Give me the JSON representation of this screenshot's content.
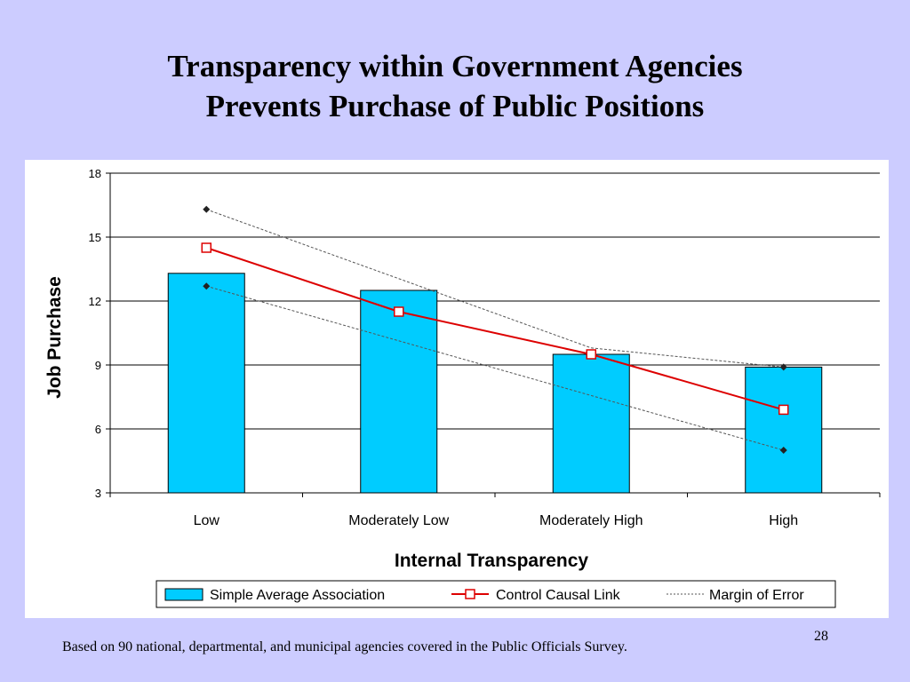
{
  "slide": {
    "title_line1": "Transparency within Government Agencies",
    "title_line2": "Prevents Purchase of Public Positions",
    "footnote": "Based on 90 national, departmental, and municipal agencies covered in the  Public Officials Survey.",
    "page_number": "28"
  },
  "colors": {
    "background": "#ccccff",
    "bar_fill": "#00ccff",
    "causal_line": "#dd0000",
    "error_line": "#555555"
  },
  "chart_data": {
    "type": "bar",
    "xlabel": "Internal Transparency",
    "ylabel": "Job Purchase",
    "categories": [
      "Low",
      "Moderately Low",
      "Moderately High",
      "High"
    ],
    "ylim": [
      3,
      18
    ],
    "yticks": [
      3,
      6,
      9,
      12,
      15,
      18
    ],
    "grid": true,
    "legend_position": "bottom",
    "series": [
      {
        "name": "Simple Average Association",
        "kind": "bar",
        "values": [
          13.3,
          12.5,
          9.5,
          8.9
        ]
      },
      {
        "name": "Control Causal Link",
        "kind": "line",
        "marker": "square",
        "values": [
          14.5,
          11.5,
          9.5,
          6.9
        ]
      },
      {
        "name": "Margin of Error",
        "kind": "dotted-line",
        "upper": [
          16.3,
          null,
          9.8,
          8.9
        ],
        "lower": [
          12.7,
          null,
          null,
          5.0
        ]
      }
    ]
  }
}
